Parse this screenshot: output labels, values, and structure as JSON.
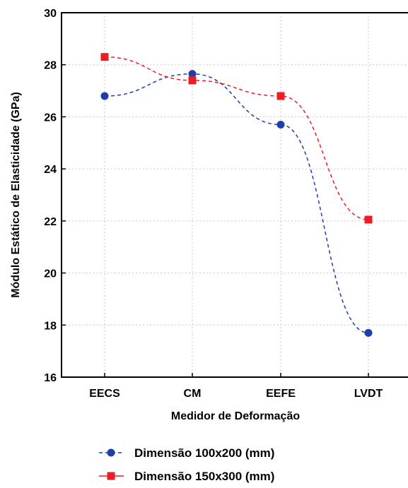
{
  "chart_data": {
    "type": "line",
    "categories": [
      "EECS",
      "CM",
      "EEFE",
      "LVDT"
    ],
    "series": [
      {
        "name": "Dimensão 100x200 (mm)",
        "values": [
          26.8,
          27.65,
          25.7,
          17.7
        ],
        "color": "#1f3fa8",
        "marker": "circle",
        "line": "dashed"
      },
      {
        "name": "Dimensão 150x300 (mm)",
        "values": [
          28.3,
          27.4,
          26.8,
          22.05
        ],
        "color": "#ee1c25",
        "marker": "square",
        "line": "dashed"
      }
    ],
    "xlabel": "Medidor de Deformação",
    "ylabel": "Módulo Estático de Elasticidade (GPa)",
    "ylim": [
      16,
      30
    ],
    "yticks": [
      16,
      18,
      20,
      22,
      24,
      26,
      28,
      30
    ],
    "grid": true,
    "legend_position": "bottom"
  }
}
